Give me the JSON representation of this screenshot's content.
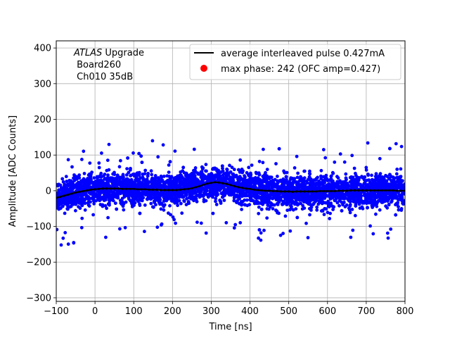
{
  "chart_data": {
    "type": "scatter",
    "title": "",
    "xlabel": "Time [ns]",
    "ylabel": "Amplitude [ADC Counts]",
    "xlim": [
      -100,
      800
    ],
    "ylim": [
      -310,
      420
    ],
    "xticks": [
      -100,
      0,
      100,
      200,
      300,
      400,
      500,
      600,
      700,
      800
    ],
    "yticks": [
      -300,
      -200,
      -100,
      0,
      100,
      200,
      300,
      400
    ],
    "grid": true,
    "legend_position": "top-right",
    "annotation": {
      "italic_part": "ATLAS",
      "line1_rest": " Upgrade",
      "line2": " Board260",
      "line3": " Ch010 35dB"
    },
    "series": [
      {
        "name": "average interleaved pulse 0.427mA",
        "kind": "line",
        "color": "#000000",
        "x": [
          -100,
          -90,
          -80,
          -70,
          -60,
          -50,
          -40,
          -30,
          -20,
          -10,
          0,
          10,
          20,
          30,
          40,
          50,
          60,
          70,
          80,
          90,
          100,
          110,
          120,
          130,
          140,
          150,
          160,
          170,
          180,
          190,
          200,
          210,
          220,
          230,
          240,
          250,
          260,
          270,
          280,
          290,
          300,
          310,
          320,
          330,
          340,
          350,
          360,
          370,
          380,
          390,
          400,
          410,
          420,
          430,
          440,
          450,
          460,
          470,
          480,
          490,
          500,
          510,
          520,
          530,
          540,
          550,
          560,
          570,
          580,
          590,
          600,
          610,
          620,
          630,
          640,
          650,
          660,
          670,
          680,
          690,
          700,
          710,
          720,
          730,
          740,
          750,
          760,
          770,
          780,
          790,
          800
        ],
        "y": [
          -20,
          -17,
          -14,
          -11,
          -8,
          -5,
          -3,
          -1,
          1,
          3,
          4,
          5,
          6,
          6,
          6,
          6,
          6,
          5,
          5,
          5,
          5,
          4,
          4,
          4,
          3,
          3,
          3,
          2,
          2,
          2,
          2,
          2,
          3,
          4,
          5,
          7,
          10,
          13,
          17,
          20,
          22,
          24,
          23,
          21,
          19,
          16,
          13,
          10,
          8,
          6,
          5,
          3,
          2,
          1,
          0,
          0,
          -1,
          -1,
          -2,
          -2,
          -2,
          -3,
          -2,
          -2,
          -2,
          -2,
          -2,
          -2,
          -1,
          -1,
          -1,
          -1,
          -1,
          0,
          0,
          0,
          1,
          1,
          1,
          1,
          1,
          1,
          1,
          1,
          1,
          1,
          1,
          1,
          0,
          0,
          0
        ]
      },
      {
        "name": "max phase: 242 (OFC amp=0.427)",
        "kind": "scatter",
        "color": "#0000ff",
        "legend_color": "#ff0000",
        "note": "dense noisy samples around the average pulse; envelope roughly ±60 ADC counts with outliers to about ±145",
        "n_points": 4500,
        "noise_sigma": 22,
        "envelope": [
          -160,
          145
        ]
      }
    ]
  }
}
